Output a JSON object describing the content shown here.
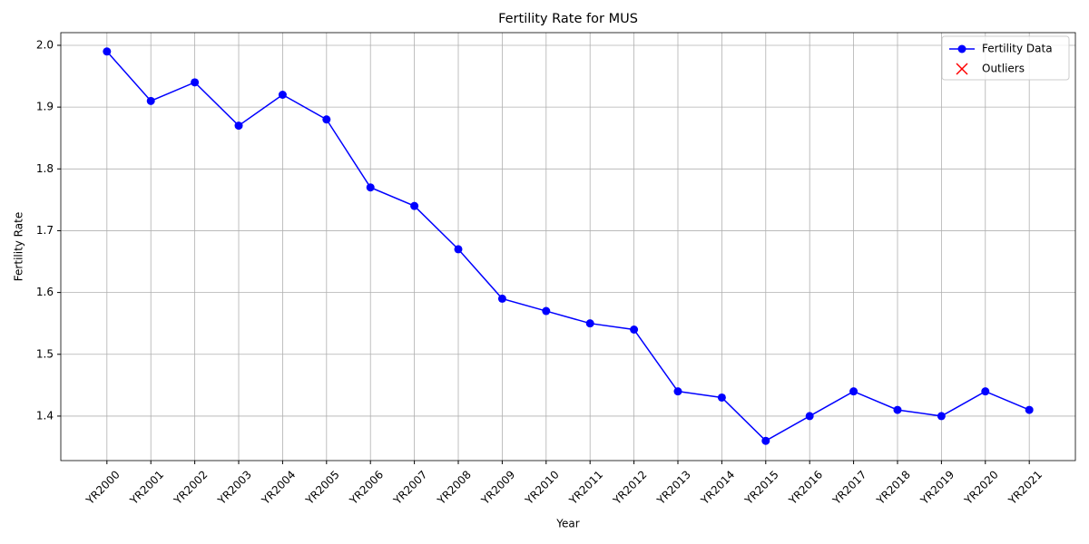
{
  "chart_data": {
    "type": "line",
    "title": "Fertility Rate for MUS",
    "xlabel": "Year",
    "ylabel": "Fertility Rate",
    "categories": [
      "YR2000",
      "YR2001",
      "YR2002",
      "YR2003",
      "YR2004",
      "YR2005",
      "YR2006",
      "YR2007",
      "YR2008",
      "YR2009",
      "YR2010",
      "YR2011",
      "YR2012",
      "YR2013",
      "YR2014",
      "YR2015",
      "YR2016",
      "YR2017",
      "YR2018",
      "YR2019",
      "YR2020",
      "YR2021"
    ],
    "series": [
      {
        "name": "Fertility Data",
        "color": "#0000ff",
        "marker": "o",
        "values": [
          1.99,
          1.91,
          1.94,
          1.87,
          1.92,
          1.88,
          1.77,
          1.74,
          1.67,
          1.59,
          1.57,
          1.55,
          1.54,
          1.44,
          1.43,
          1.36,
          1.4,
          1.44,
          1.41,
          1.4,
          1.44,
          1.41
        ]
      },
      {
        "name": "Outliers",
        "color": "#ff0000",
        "marker": "x",
        "values": [
          null,
          null,
          null,
          null,
          null,
          null,
          null,
          null,
          null,
          null,
          null,
          null,
          null,
          null,
          null,
          null,
          null,
          null,
          null,
          null,
          null,
          null
        ]
      }
    ],
    "ylim": [
      1.328,
      2.0205
    ],
    "yticks": [
      1.4,
      1.5,
      1.6,
      1.7,
      1.8,
      1.9,
      {
        "value": 2,
        "label": "2.0"
      }
    ],
    "grid": true,
    "legend": "upper right"
  }
}
